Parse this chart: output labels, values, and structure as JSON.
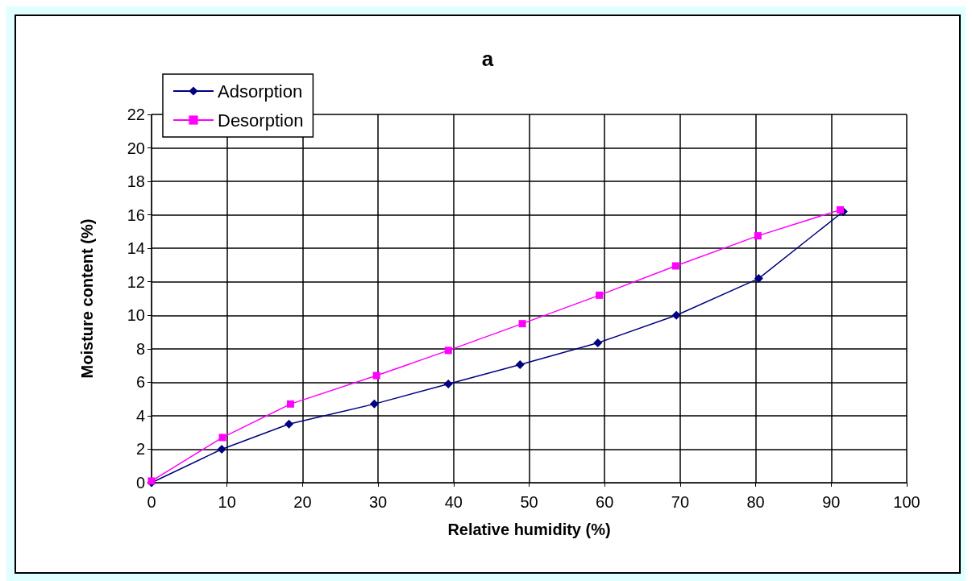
{
  "chart_data": {
    "type": "line",
    "title": "a",
    "xlabel": "Relative humidity (%)",
    "ylabel": "Moisture content (%)",
    "xlim": [
      0,
      100
    ],
    "xticks": [
      0,
      10,
      20,
      30,
      40,
      50,
      60,
      70,
      80,
      90,
      100
    ],
    "ylim": [
      0,
      22
    ],
    "yticks": [
      0,
      2,
      4,
      6,
      8,
      10,
      12,
      14,
      16,
      18,
      20,
      22
    ],
    "grid": true,
    "legend": "top left",
    "series": [
      {
        "name": "Adsorption",
        "color": "#000080",
        "marker": "diamond",
        "x": [
          0,
          9.3,
          18.2,
          29.5,
          39.3,
          48.8,
          59.1,
          69.5,
          80.4,
          91.6
        ],
        "values": [
          0,
          2.0,
          3.5,
          4.7,
          5.9,
          7.05,
          8.35,
          10.0,
          12.2,
          16.2
        ]
      },
      {
        "name": "Desorption",
        "color": "#ff00ff",
        "marker": "square",
        "x": [
          0,
          9.4,
          18.4,
          29.8,
          39.3,
          49.1,
          59.3,
          69.4,
          80.3,
          91.2
        ],
        "values": [
          0.1,
          2.7,
          4.7,
          6.4,
          7.9,
          9.5,
          11.2,
          12.95,
          14.75,
          16.3
        ]
      }
    ]
  }
}
